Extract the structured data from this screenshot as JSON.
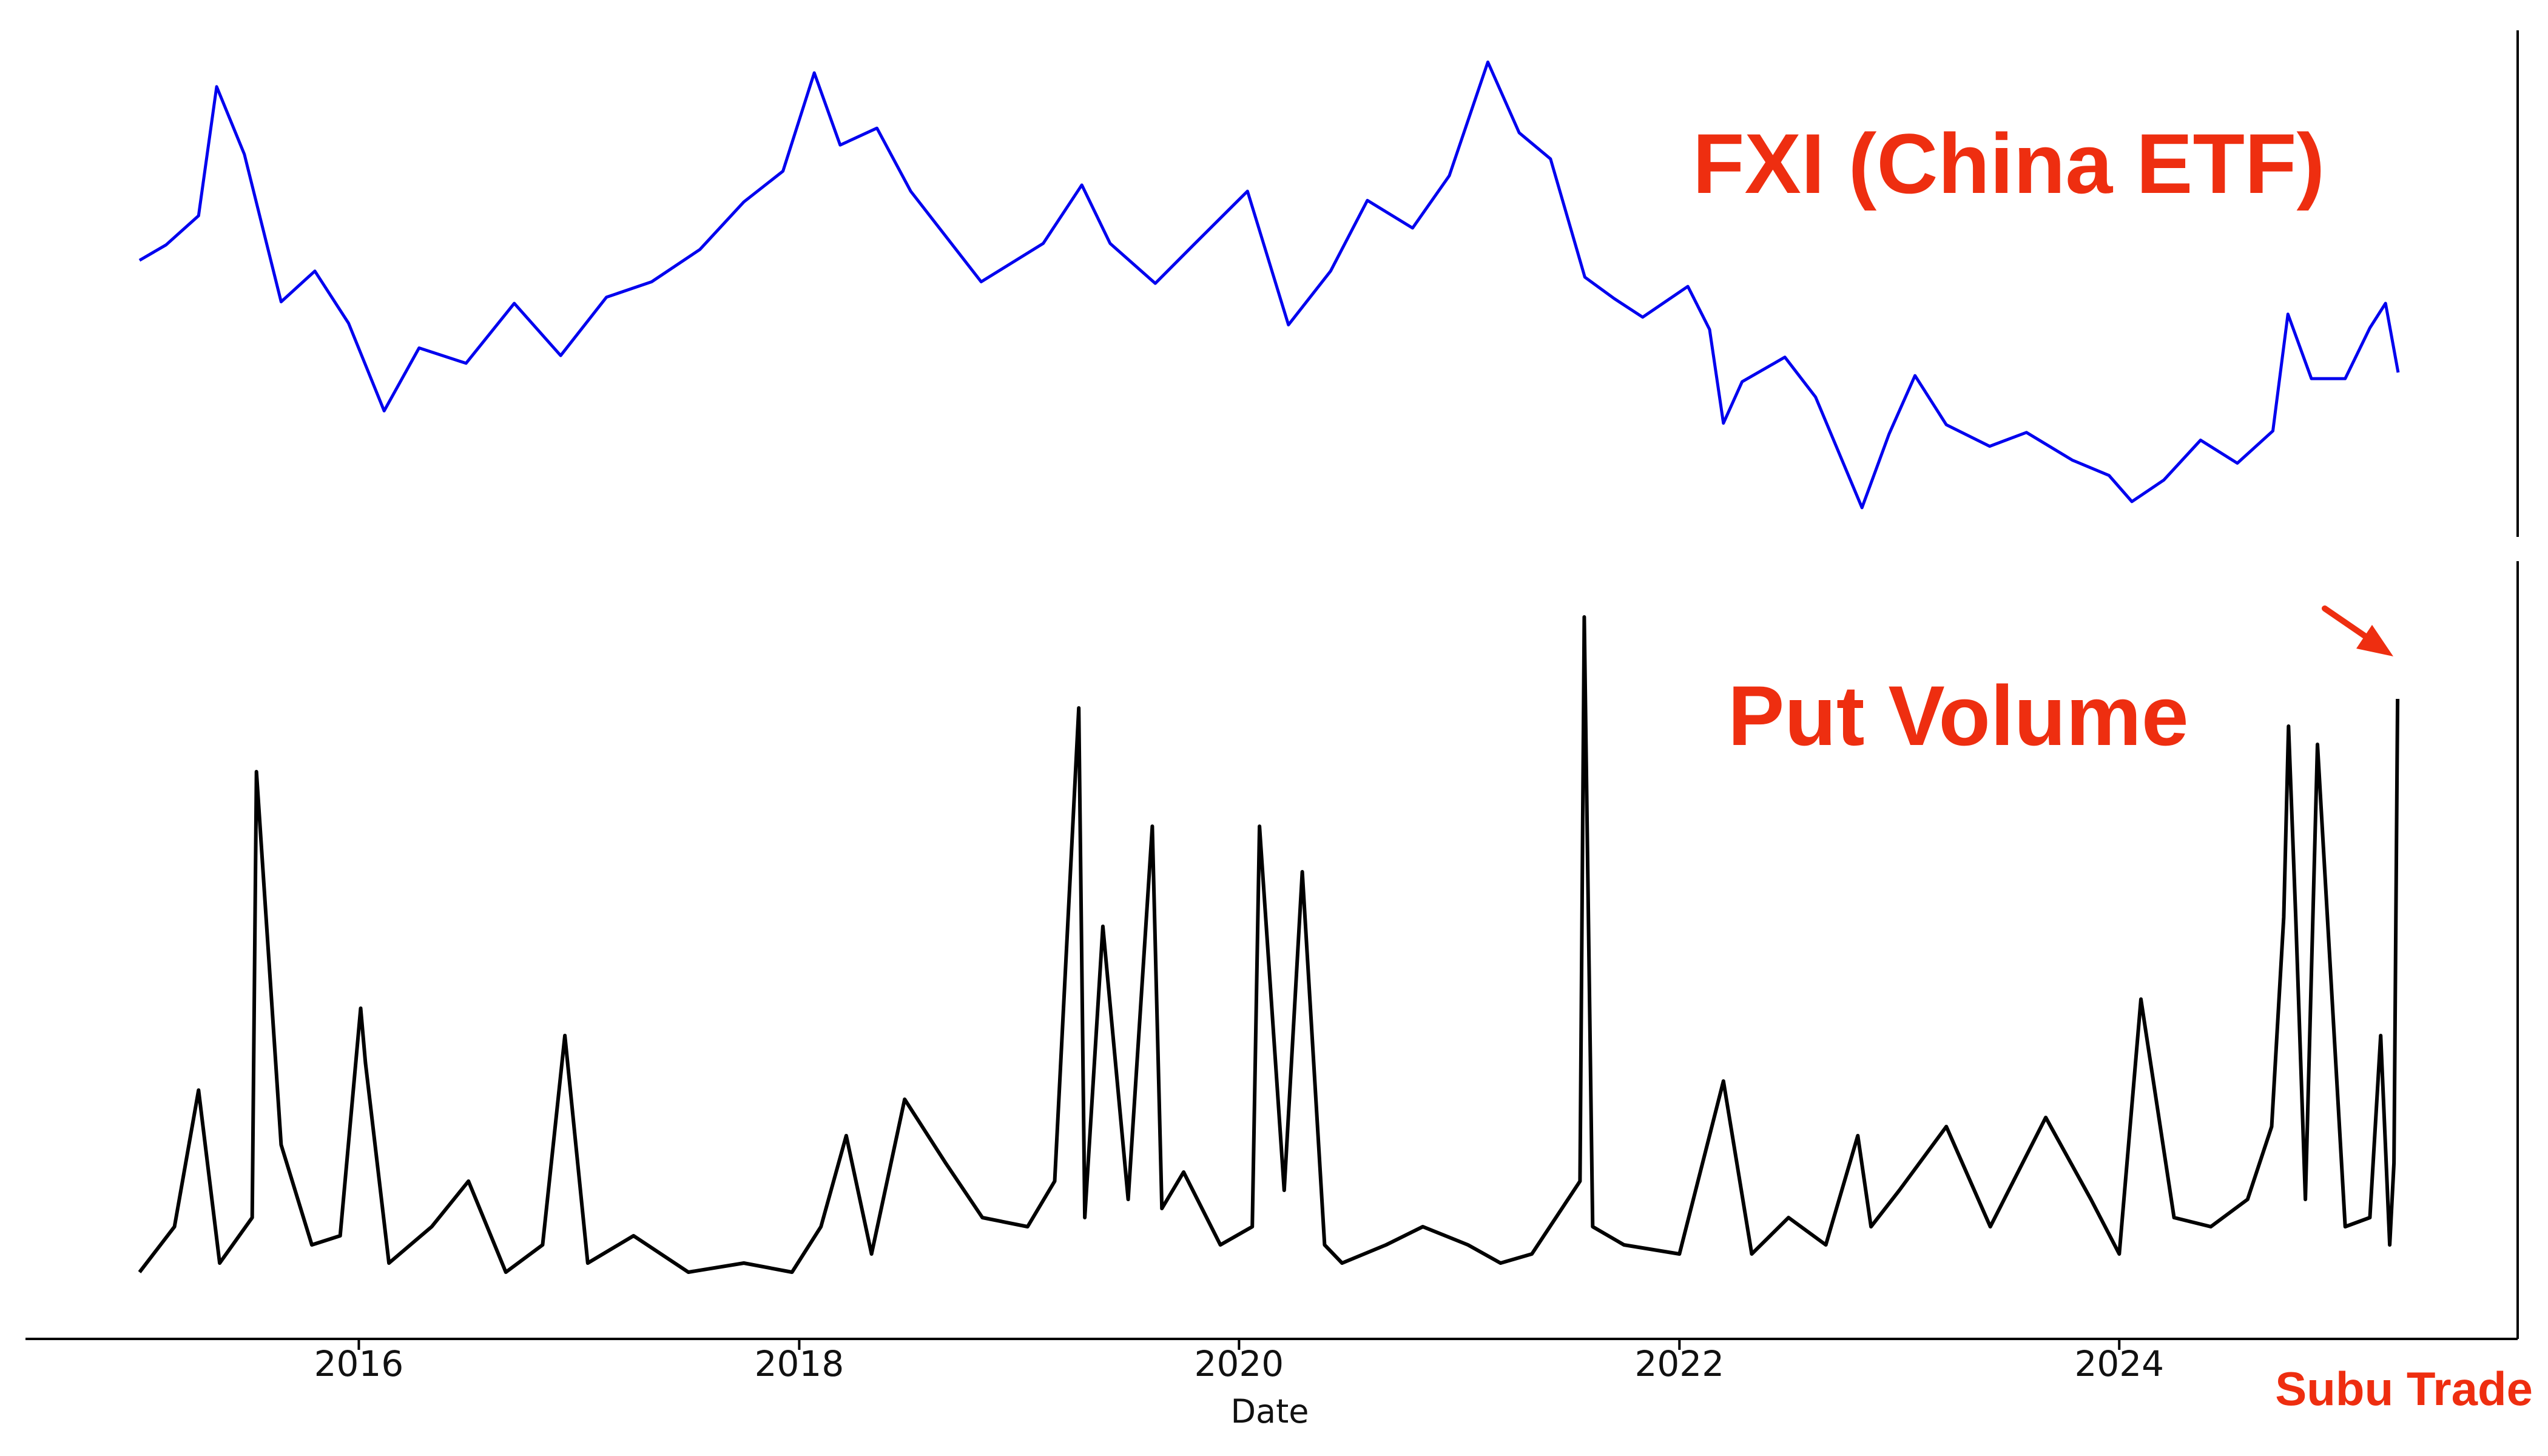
{
  "chart_data": [
    {
      "type": "line",
      "title": "FXI (China ETF)",
      "series": [
        {
          "color": "#0000ee",
          "x": [
            "2015-01-02",
            "2015-02-15",
            "2015-04-10",
            "2015-05-10",
            "2015-06-25",
            "2015-08-25",
            "2015-10-20",
            "2015-12-15",
            "2016-02-12",
            "2016-04-10",
            "2016-06-27",
            "2016-09-15",
            "2016-12-01",
            "2017-02-15",
            "2017-05-01",
            "2017-07-20",
            "2017-10-01",
            "2017-12-05",
            "2018-01-26",
            "2018-03-10",
            "2018-05-10",
            "2018-07-05",
            "2018-10-30",
            "2019-02-10",
            "2019-04-15",
            "2019-06-01",
            "2019-08-15",
            "2019-10-20",
            "2020-01-15",
            "2020-03-23",
            "2020-06-01",
            "2020-08-01",
            "2020-10-15",
            "2020-12-15",
            "2021-02-17",
            "2021-04-10",
            "2021-06-01",
            "2021-07-28",
            "2021-09-15",
            "2021-11-01",
            "2022-01-15",
            "2022-02-20",
            "2022-03-15",
            "2022-04-15",
            "2022-06-25",
            "2022-08-15",
            "2022-10-31",
            "2022-12-15",
            "2023-01-27",
            "2023-03-20",
            "2023-05-31",
            "2023-07-31",
            "2023-10-15",
            "2023-12-15",
            "2024-01-22",
            "2024-03-15",
            "2024-05-15",
            "2024-07-15",
            "2024-09-12",
            "2024-10-07",
            "2024-11-15",
            "2025-01-10",
            "2025-02-20",
            "2025-03-18",
            "2025-04-08"
          ],
          "y": [
            40.3,
            41.3,
            43.2,
            51.6,
            47.2,
            37.6,
            39.6,
            36.2,
            30.5,
            34.6,
            33.6,
            37.5,
            34.1,
            37.9,
            38.9,
            41.0,
            44.1,
            46.1,
            52.5,
            47.8,
            48.9,
            44.8,
            38.9,
            41.4,
            45.2,
            41.4,
            38.8,
            41.4,
            44.8,
            36.1,
            39.6,
            44.2,
            42.4,
            45.8,
            53.2,
            48.6,
            46.9,
            39.2,
            37.8,
            36.6,
            38.6,
            35.8,
            29.7,
            32.4,
            34.0,
            31.4,
            24.2,
            29.0,
            32.8,
            29.6,
            28.2,
            29.1,
            27.3,
            26.3,
            24.6,
            26.0,
            28.6,
            27.1,
            29.2,
            36.8,
            32.6,
            32.6,
            35.9,
            37.5,
            33.0
          ]
        }
      ]
    },
    {
      "type": "line",
      "title": "Put Volume",
      "xlabel": "Date",
      "xticks": [
        "2016",
        "2018",
        "2020",
        "2022",
        "2024"
      ],
      "series": [
        {
          "color": "#000000",
          "x": [
            "2015-01-02",
            "2015-03-01",
            "2015-04-10",
            "2015-05-15",
            "2015-07-08",
            "2015-07-15",
            "2015-08-25",
            "2015-10-15",
            "2015-12-01",
            "2016-01-04",
            "2016-01-12",
            "2016-02-20",
            "2016-05-01",
            "2016-07-01",
            "2016-09-01",
            "2016-11-01",
            "2016-12-08",
            "2017-01-15",
            "2017-04-01",
            "2017-07-01",
            "2017-10-01",
            "2017-12-20",
            "2018-02-06",
            "2018-03-20",
            "2018-05-01",
            "2018-06-25",
            "2018-09-01",
            "2018-11-01",
            "2019-01-15",
            "2019-03-01",
            "2019-04-10",
            "2019-04-20",
            "2019-05-20",
            "2019-07-01",
            "2019-08-10",
            "2019-08-26",
            "2019-10-01",
            "2019-12-01",
            "2020-01-23",
            "2020-02-04",
            "2020-03-16",
            "2020-04-15",
            "2020-05-22",
            "2020-06-20",
            "2020-09-01",
            "2020-11-01",
            "2021-01-15",
            "2021-03-10",
            "2021-05-01",
            "2021-07-20",
            "2021-07-27",
            "2021-08-10",
            "2021-10-01",
            "2022-01-01",
            "2022-03-15",
            "2022-05-01",
            "2022-07-01",
            "2022-09-01",
            "2022-10-24",
            "2022-11-15",
            "2023-01-01",
            "2023-03-20",
            "2023-06-01",
            "2023-09-01",
            "2023-11-15",
            "2024-01-01",
            "2024-02-06",
            "2024-04-01",
            "2024-06-01",
            "2024-08-01",
            "2024-09-10",
            "2024-09-30",
            "2024-10-08",
            "2024-10-20",
            "2024-11-05",
            "2024-11-25",
            "2025-01-10",
            "2025-02-20",
            "2025-03-10",
            "2025-03-25",
            "2025-04-01",
            "2025-04-07"
          ],
          "y": [
            0.3,
            0.8,
            2.3,
            0.4,
            0.9,
            5.8,
            1.7,
            0.6,
            0.7,
            3.2,
            2.6,
            0.4,
            0.8,
            1.3,
            0.3,
            0.6,
            2.9,
            0.4,
            0.7,
            0.3,
            0.4,
            0.3,
            0.8,
            1.8,
            0.5,
            2.2,
            1.5,
            0.9,
            0.8,
            1.3,
            6.5,
            0.9,
            4.1,
            1.1,
            5.2,
            1.0,
            1.4,
            0.6,
            0.8,
            5.2,
            1.2,
            4.7,
            0.6,
            0.4,
            0.6,
            0.8,
            0.6,
            0.4,
            0.5,
            1.3,
            7.5,
            0.8,
            0.6,
            0.5,
            2.4,
            0.5,
            0.9,
            0.6,
            1.8,
            0.8,
            1.2,
            1.9,
            0.8,
            2.0,
            1.1,
            0.5,
            3.3,
            0.9,
            0.8,
            1.1,
            1.9,
            4.2,
            6.3,
            4.2,
            1.1,
            6.1,
            0.8,
            0.9,
            2.9,
            0.6,
            1.5,
            6.6
          ]
        }
      ]
    }
  ],
  "brand": "Subu Trade",
  "annotation_color": "#ee2e10"
}
